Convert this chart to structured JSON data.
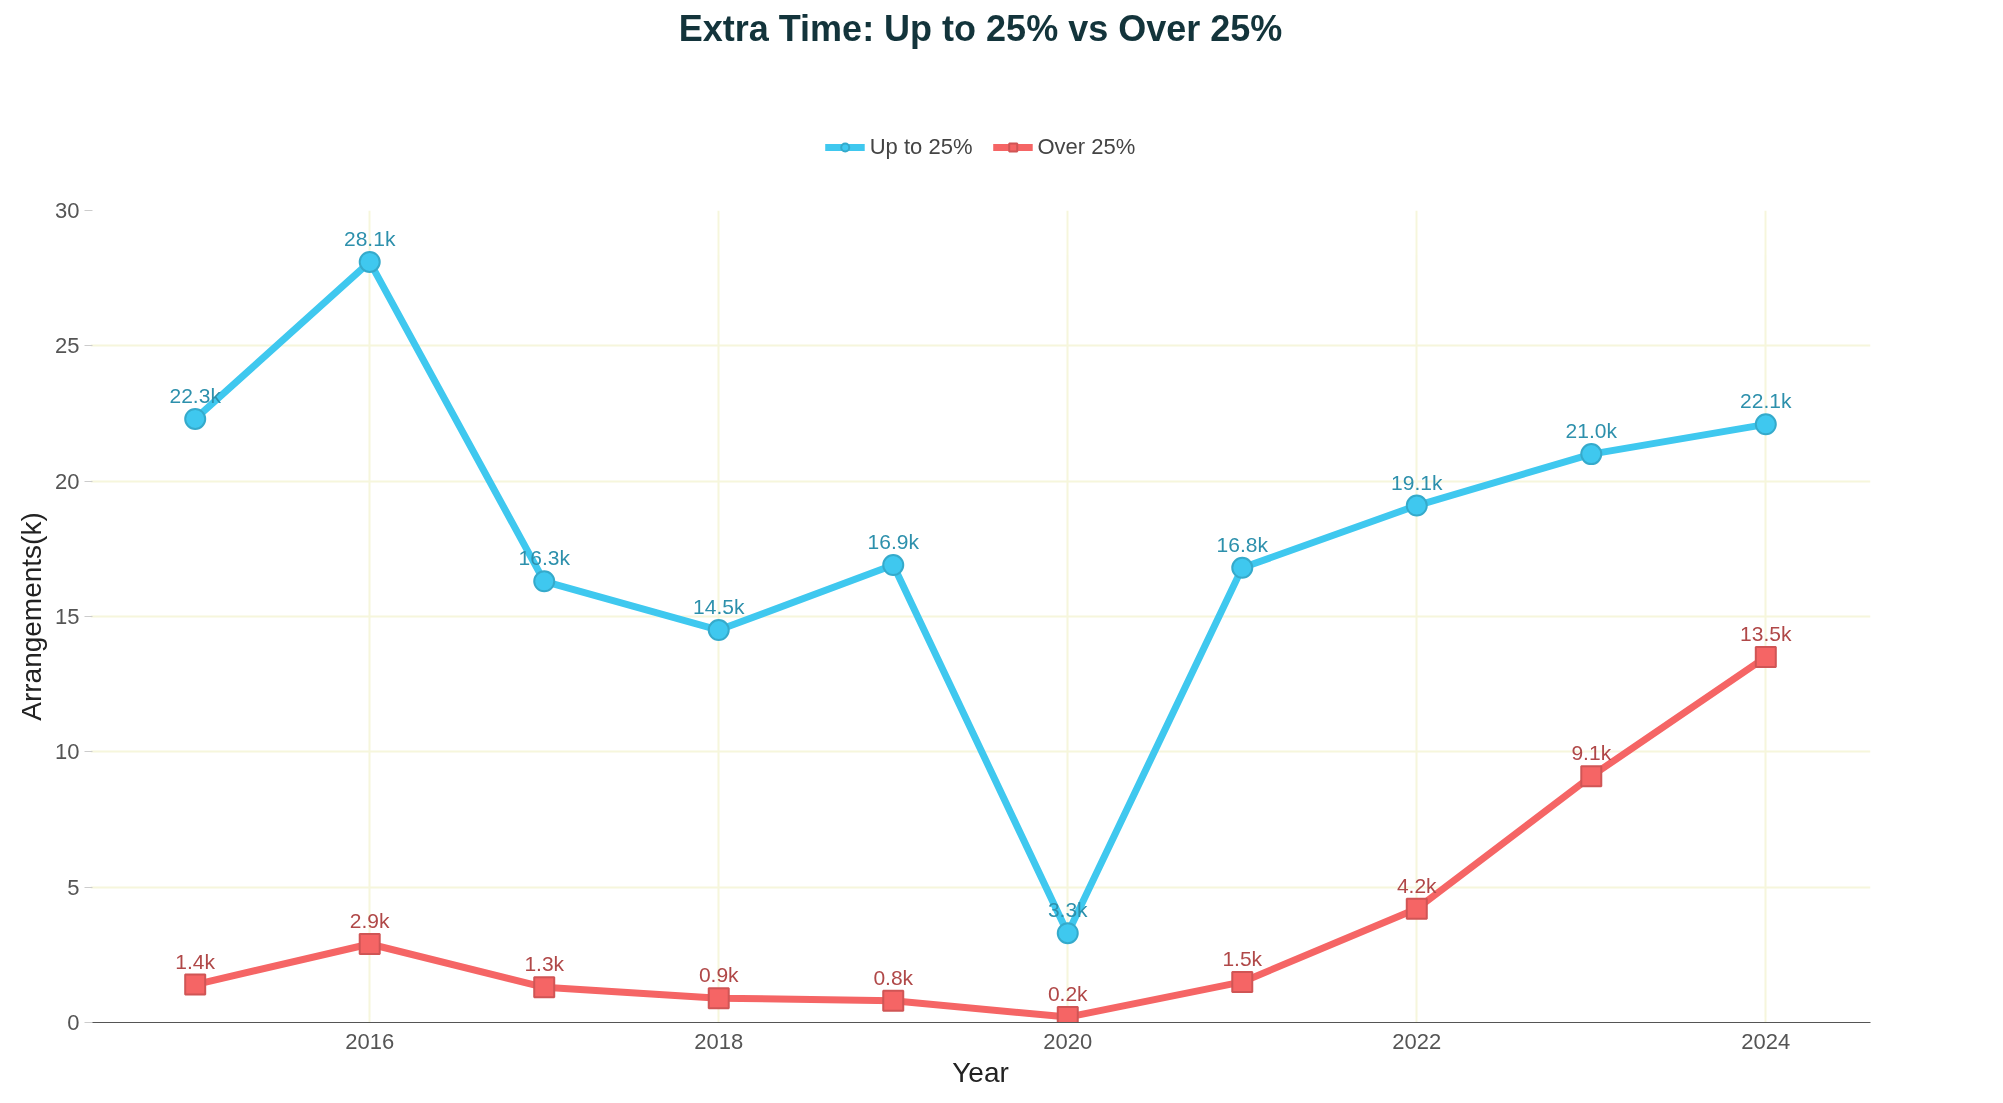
{
  "chart_data": {
    "type": "line",
    "title": "Extra Time: Up to 25% vs Over 25%",
    "xlabel": "Year",
    "ylabel": "Arrangements(k)",
    "x": [
      2015,
      2016,
      2017,
      2018,
      2019,
      2020,
      2021,
      2022,
      2023,
      2024
    ],
    "series": [
      {
        "name": "Up to 25%",
        "color": "#3fc8ef",
        "marker": "circle",
        "values": [
          22.3,
          28.1,
          16.3,
          14.5,
          16.9,
          3.3,
          16.8,
          19.1,
          21.0,
          22.1
        ],
        "value_labels": [
          "22.3k",
          "28.1k",
          "16.3k",
          "14.5k",
          "16.9k",
          "3.3k",
          "16.8k",
          "19.1k",
          "21.0k",
          "22.1k"
        ]
      },
      {
        "name": "Over 25%",
        "color": "#f56565",
        "marker": "square",
        "values": [
          1.4,
          2.9,
          1.3,
          0.9,
          0.8,
          0.2,
          1.5,
          4.2,
          9.1,
          13.5
        ],
        "value_labels": [
          "1.4k",
          "2.9k",
          "1.3k",
          "0.9k",
          "0.8k",
          "0.2k",
          "1.5k",
          "4.2k",
          "9.1k",
          "13.5k"
        ]
      }
    ],
    "xlim": [
      2014.4,
      2024.6
    ],
    "xticks": [
      2016,
      2018,
      2020,
      2022,
      2024
    ],
    "ylim": [
      0,
      30
    ],
    "yticks": [
      0,
      5,
      10,
      15,
      20,
      25,
      30
    ],
    "grid": true,
    "legend": "top",
    "line_style": "solid"
  }
}
